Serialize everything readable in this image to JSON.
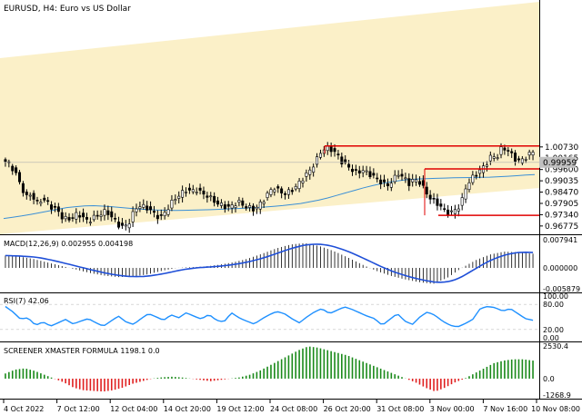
{
  "window": {
    "title": "EURUSD, H4:  Euro vs US Dollar"
  },
  "colors": {
    "background": "#ffffff",
    "channel_fill": "#fbf0c8",
    "candle": "#000000",
    "ma_line": "#3a8fd6",
    "level_line": "#e00000",
    "current_price_tag": "#c0c0c0",
    "macd_line": "#1f4fd8",
    "macd_hist": "#000000",
    "rsi_line": "#1e90ff",
    "screener_pos": "#1a8a1a",
    "screener_neg": "#e02020"
  },
  "chart_data": [
    {
      "type": "candlestick",
      "title": "EURUSD, H4:  Euro vs US Dollar",
      "series_name": "EURUSD H4",
      "ylim": [
        0.9645,
        1.079
      ],
      "price_ticks": [
        "1.00730",
        "1.00165",
        "0.99600",
        "0.99035",
        "0.98470",
        "0.97905",
        "0.97340",
        "0.96775"
      ],
      "current_price": "0.99959",
      "levels": [
        {
          "name": "resistance",
          "value": 1.0078
        },
        {
          "name": "support-upper",
          "value": 0.9963
        },
        {
          "name": "support-lower",
          "value": 0.9731
        }
      ],
      "close_path": [
        1.0,
        0.998,
        0.994,
        0.988,
        0.982,
        0.984,
        0.979,
        0.981,
        0.98,
        0.977,
        0.976,
        0.972,
        0.971,
        0.972,
        0.974,
        0.972,
        0.97,
        0.972,
        0.973,
        0.975,
        0.974,
        0.971,
        0.968,
        0.967,
        0.97,
        0.976,
        0.978,
        0.977,
        0.976,
        0.973,
        0.972,
        0.975,
        0.979,
        0.982,
        0.984,
        0.986,
        0.985,
        0.986,
        0.984,
        0.983,
        0.981,
        0.979,
        0.978,
        0.977,
        0.978,
        0.98,
        0.978,
        0.977,
        0.976,
        0.978,
        0.981,
        0.985,
        0.987,
        0.985,
        0.984,
        0.985,
        0.987,
        0.99,
        0.993,
        0.996,
        1.0,
        1.005,
        1.007,
        1.006,
        1.004,
        1.0,
        0.998,
        0.996,
        0.994,
        0.996,
        0.994,
        0.993,
        0.991,
        0.989,
        0.988,
        0.991,
        0.994,
        0.992,
        0.989,
        0.991,
        0.99,
        0.986,
        0.982,
        0.98,
        0.978,
        0.975,
        0.974,
        0.976,
        0.978,
        0.987,
        0.991,
        0.994,
        0.996,
        0.999,
        1.003,
        1.002,
        1.007,
        1.006,
        1.003,
        1.0,
        1.001,
        1.003,
        1.005
      ],
      "ma_path": [
        0.9715,
        0.973,
        0.975,
        0.977,
        0.978,
        0.9775,
        0.9765,
        0.9758,
        0.9755,
        0.9757,
        0.976,
        0.9765,
        0.977,
        0.9778,
        0.979,
        0.981,
        0.984,
        0.987,
        0.9895,
        0.991,
        0.9915,
        0.9918,
        0.992,
        0.9922,
        0.9928,
        0.9935
      ],
      "x_tick_labels": [
        "4 Oct 2022",
        "7 Oct 12:00",
        "12 Oct 04:00",
        "14 Oct 20:00",
        "19 Oct 12:00",
        "24 Oct 08:00",
        "26 Oct 20:00",
        "31 Oct 08:00",
        "3 Nov 00:00",
        "7 Nov 16:00",
        "10 Nov 08:00"
      ]
    },
    {
      "type": "bar",
      "title": "MACD(12,26,9) 0.002955 0.004198",
      "ylim": [
        -0.00587,
        0.00794
      ],
      "y_ticks": [
        "0.007941",
        "0.000000",
        "-0.005879"
      ],
      "macd_path": [
        0.0035,
        0.0032,
        0.0025,
        0.0015,
        0.0005,
        -0.0005,
        -0.0015,
        -0.0022,
        -0.0026,
        -0.0024,
        -0.0018,
        -0.0008,
        0.0,
        0.0002,
        0.0004,
        0.0009,
        0.0016,
        0.0026,
        0.004,
        0.0055,
        0.0066,
        0.007,
        0.0062,
        0.0048,
        0.003,
        0.001,
        -0.0008,
        -0.0022,
        -0.0032,
        -0.004,
        -0.0045,
        -0.0028,
        0.0,
        0.0022,
        0.0038,
        0.0046,
        0.0044,
        0.004
      ]
    },
    {
      "type": "line",
      "title": "RSI(7) 42.06",
      "ylim": [
        0,
        100
      ],
      "y_ticks": [
        "100.00",
        "80.00",
        "20.00",
        "0.00"
      ],
      "values": [
        75,
        62,
        45,
        48,
        30,
        38,
        28,
        36,
        44,
        33,
        40,
        46,
        36,
        28,
        40,
        52,
        38,
        32,
        46,
        58,
        50,
        42,
        55,
        48,
        60,
        52,
        45,
        56,
        42,
        38,
        60,
        48,
        40,
        33,
        45,
        55,
        63,
        58,
        46,
        36,
        50,
        62,
        70,
        58,
        66,
        74,
        68,
        60,
        52,
        46,
        30,
        44,
        58,
        40,
        32,
        50,
        62,
        54,
        40,
        30,
        26,
        34,
        44,
        70,
        75,
        72,
        64,
        70,
        58,
        46,
        42
      ]
    },
    {
      "type": "bar",
      "title": "SCREENER XMASTER FORMULA 1198.1 0.0",
      "ylim": [
        -1268.9,
        2530.4
      ],
      "y_ticks": [
        "2530.4",
        "0.0",
        "-1268.9"
      ],
      "values_path": [
        400,
        700,
        800,
        600,
        300,
        0,
        -300,
        -700,
        -900,
        -950,
        -1000,
        -900,
        -700,
        -400,
        -200,
        0,
        100,
        150,
        100,
        0,
        -100,
        -200,
        -100,
        0,
        100,
        300,
        600,
        1000,
        1400,
        1800,
        2200,
        2500,
        2400,
        2200,
        2000,
        1800,
        1500,
        1200,
        900,
        600,
        300,
        0,
        -300,
        -700,
        -1000,
        -700,
        -300,
        0,
        400,
        800,
        1200,
        1400,
        1500,
        1500,
        1400
      ]
    }
  ]
}
